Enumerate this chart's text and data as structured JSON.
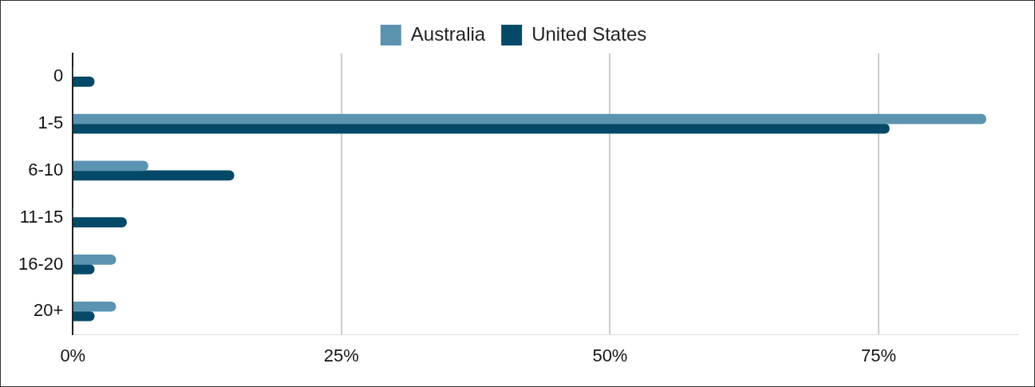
{
  "chart_data": {
    "type": "bar",
    "orientation": "horizontal",
    "categories": [
      "0",
      "1-5",
      "6-10",
      "11-15",
      "16-20",
      "20+"
    ],
    "series": [
      {
        "name": "Australia",
        "color": "#5b93b0",
        "values": [
          0,
          85,
          7,
          0,
          4,
          4
        ]
      },
      {
        "name": "United States",
        "color": "#044a68",
        "values": [
          2,
          76,
          15,
          5,
          2,
          2
        ]
      }
    ],
    "xlim": [
      0,
      88
    ],
    "xticks": [
      {
        "value": 0,
        "label": "0%"
      },
      {
        "value": 25,
        "label": "25%"
      },
      {
        "value": 50,
        "label": "50%"
      },
      {
        "value": 75,
        "label": "75%"
      }
    ],
    "grid": "x",
    "legend": "top"
  }
}
